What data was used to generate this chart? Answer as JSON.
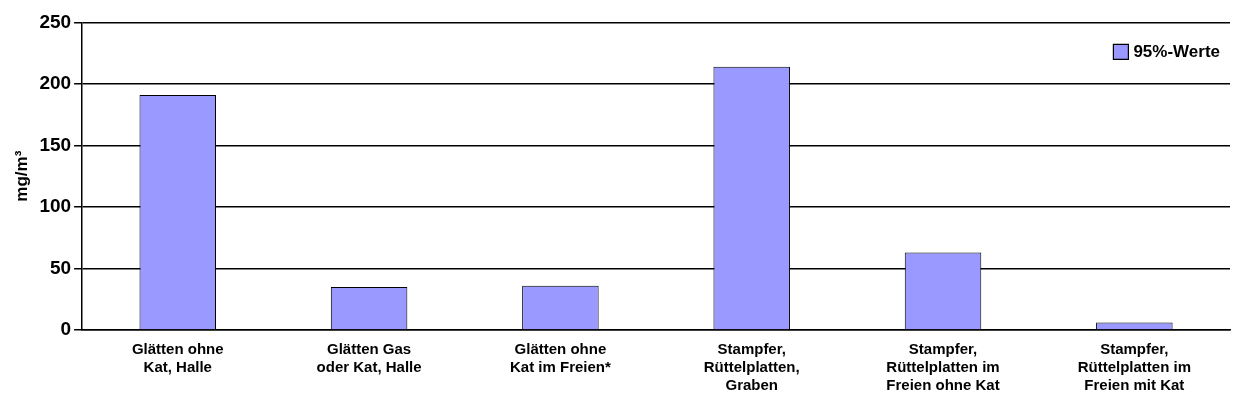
{
  "chart_data": {
    "type": "bar",
    "ylabel": "mg/m³",
    "categories": [
      "Glätten ohne\nKat, Halle",
      "Glätten Gas\noder Kat, Halle",
      "Glätten ohne\nKat im Freien*",
      "Stampfer,\nRüttelplatten,\nGraben",
      "Stampfer,\nRüttelplatten im\nFreien ohne Kat",
      "Stampfer,\nRüttelplatten im\nFreien mit Kat"
    ],
    "series": [
      {
        "name": "95%-Werte",
        "color": "#9999ff",
        "values": [
          191,
          35,
          36,
          214,
          63,
          6
        ]
      }
    ],
    "ylim": [
      0,
      250
    ],
    "yticks": [
      0,
      50,
      100,
      150,
      200,
      250
    ],
    "grid": "y",
    "legend": "top right"
  }
}
